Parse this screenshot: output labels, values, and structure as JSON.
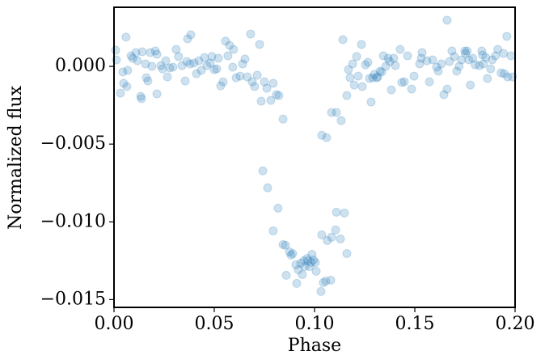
{
  "chart_data": {
    "type": "scatter",
    "xlabel": "Phase",
    "ylabel": "Normalized flux",
    "color": "#1f77b4",
    "alpha": 0.22,
    "xlim": [
      0,
      0.2
    ],
    "ylim": [
      -0.0155,
      0.0038
    ],
    "xticks": [
      {
        "value": 0,
        "label": "0.00"
      },
      {
        "value": 0.05,
        "label": "0.05"
      },
      {
        "value": 0.1,
        "label": "0.10"
      },
      {
        "value": 0.15,
        "label": "0.15"
      },
      {
        "value": 0.2,
        "label": "0.20"
      }
    ],
    "yticks": [
      {
        "value": -0.015,
        "label": "−0.015"
      },
      {
        "value": -0.01,
        "label": "−0.010"
      },
      {
        "value": -0.005,
        "label": "−0.005"
      },
      {
        "value": 0,
        "label": "0.000"
      }
    ],
    "x": [
      0.0008,
      0.0012,
      0.0032,
      0.0044,
      0.0048,
      0.006,
      0.0068,
      0.0064,
      0.0085,
      0.0093,
      0.0109,
      0.0117,
      0.0141,
      0.0133,
      0.0137,
      0.0157,
      0.0161,
      0.0169,
      0.0181,
      0.0189,
      0.0206,
      0.0214,
      0.0214,
      0.0234,
      0.0242,
      0.0258,
      0.0266,
      0.0278,
      0.0294,
      0.031,
      0.0322,
      0.0339,
      0.0355,
      0.0363,
      0.0367,
      0.0379,
      0.0383,
      0.0399,
      0.0411,
      0.0423,
      0.0435,
      0.0451,
      0.0463,
      0.048,
      0.0488,
      0.05,
      0.0512,
      0.052,
      0.0532,
      0.0544,
      0.0556,
      0.0568,
      0.0576,
      0.0592,
      0.0596,
      0.0609,
      0.0629,
      0.0641,
      0.0653,
      0.0665,
      0.0681,
      0.0689,
      0.0701,
      0.0714,
      0.0726,
      0.0734,
      0.075,
      0.0762,
      0.0782,
      0.0794,
      0.081,
      0.0822,
      0.0843,
      0.0742,
      0.0766,
      0.0794,
      0.0818,
      0.0843,
      0.0859,
      0.0855,
      0.0875,
      0.0891,
      0.0883,
      0.0907,
      0.0911,
      0.0919,
      0.0931,
      0.0939,
      0.0947,
      0.0951,
      0.0963,
      0.0967,
      0.0975,
      0.0983,
      0.0987,
      0.0995,
      0.1008,
      0.1004,
      0.1032,
      0.1036,
      0.1044,
      0.1056,
      0.1064,
      0.1081,
      0.1085,
      0.1105,
      0.1109,
      0.1129,
      0.1149,
      0.1161,
      0.1036,
      0.106,
      0.1085,
      0.1109,
      0.1133,
      0.1141,
      0.1161,
      0.1169,
      0.1177,
      0.119,
      0.1198,
      0.121,
      0.1218,
      0.1234,
      0.1238,
      0.1254,
      0.1266,
      0.1274,
      0.1282,
      0.129,
      0.1298,
      0.131,
      0.1315,
      0.1327,
      0.1335,
      0.1343,
      0.1355,
      0.1367,
      0.1375,
      0.1383,
      0.1395,
      0.1403,
      0.1427,
      0.1435,
      0.1448,
      0.1464,
      0.1484,
      0.1496,
      0.1524,
      0.1532,
      0.1536,
      0.156,
      0.1573,
      0.1589,
      0.1609,
      0.1617,
      0.1633,
      0.1645,
      0.1661,
      0.1673,
      0.1685,
      0.1697,
      0.1709,
      0.1721,
      0.1733,
      0.1753,
      0.1761,
      0.1769,
      0.1777,
      0.1789,
      0.1801,
      0.1822,
      0.1834,
      0.1838,
      0.1842,
      0.1854,
      0.1862,
      0.1878,
      0.1886,
      0.1902,
      0.1914,
      0.193,
      0.1942,
      0.1946,
      0.1959,
      0.1963,
      0.1979,
      0.1987,
      0.1661,
      0.1749
    ],
    "values": [
      0.00104,
      0.00042,
      -0.00172,
      -0.00036,
      -0.00109,
      0.00188,
      -0.00026,
      -0.0013,
      0.00068,
      0.00052,
      0.00089,
      0.00036,
      0.00094,
      -0.00193,
      -0.00208,
      0.00016,
      -0.00073,
      -0.00094,
      0.00089,
      0,
      0.00099,
      0.00078,
      -0.00177,
      5e-05,
      -0.00016,
      0.00036,
      -0.00068,
      -0.0001,
      -5e-05,
      0.00109,
      0.00063,
      5e-05,
      -0.00094,
      0.00031,
      0.00177,
      0.00016,
      0.00203,
      0.00021,
      -0.00047,
      0.00036,
      -0.00026,
      0.00057,
      5e-05,
      0.00021,
      0.00063,
      -0.00021,
      -0.00016,
      0.00052,
      -0.00125,
      -0.00099,
      0.00162,
      0.00068,
      0.00135,
      -5e-05,
      0.00109,
      -0.00073,
      -0.00063,
      0.00016,
      0.00047,
      -0.00068,
      0.00208,
      -0.00099,
      -0.0013,
      -0.00057,
      0.00141,
      -0.00224,
      -0.00099,
      -0.00141,
      -0.00219,
      -0.00109,
      -0.00182,
      -0.00188,
      -0.00339,
      -0.00672,
      -0.00781,
      -0.01058,
      -0.00912,
      -0.01146,
      -0.01344,
      -0.01151,
      -0.01193,
      -0.01204,
      -0.01214,
      -0.01276,
      -0.01396,
      -0.01308,
      -0.01266,
      -0.01339,
      -0.0125,
      -0.01287,
      -0.01235,
      -0.0125,
      -0.01287,
      -0.01261,
      -0.01209,
      -0.01245,
      -0.01318,
      -0.01261,
      -0.01448,
      -0.01084,
      -0.01391,
      -0.01381,
      -0.0112,
      -0.01375,
      -0.01099,
      -0.01052,
      -0.00938,
      -0.0111,
      -0.00943,
      -0.01204,
      -0.00443,
      -0.00458,
      -0.00297,
      -0.00297,
      -0.00349,
      0.00172,
      -0.00188,
      -0.00021,
      -0.00073,
      0.00016,
      -0.0012,
      0.00063,
      -0.00063,
      0.00141,
      -0.0013,
      0.0001,
      0.00026,
      -0.00078,
      -0.00229,
      -0.00073,
      -0.00052,
      -0.00073,
      -0.00068,
      -0.00031,
      -0.00036,
      0.00068,
      0,
      0.00052,
      0.00031,
      -0.00151,
      0.00052,
      5e-05,
      0.00109,
      -0.00104,
      -0.00099,
      0.00068,
      -0.00146,
      -0.00063,
      0.00016,
      0.00052,
      0.00089,
      0.00036,
      -0.00099,
      0.00042,
      -5e-05,
      -0.00031,
      0.00016,
      -0.00182,
      -0.00146,
      0.00031,
      0.00099,
      0.00063,
      -0.00031,
      0,
      0.00042,
      0.00083,
      0.00099,
      0.00042,
      -0.0012,
      0.00052,
      0.0001,
      5e-05,
      0.00099,
      0.00073,
      0.00016,
      0.00057,
      -0.00078,
      -0.00016,
      0.00042,
      0.00068,
      0.00109,
      -0.00042,
      0.00083,
      -0.00047,
      0.00193,
      -0.00068,
      0.00068,
      -0.00068,
      0.00297,
      0.00099
    ]
  }
}
